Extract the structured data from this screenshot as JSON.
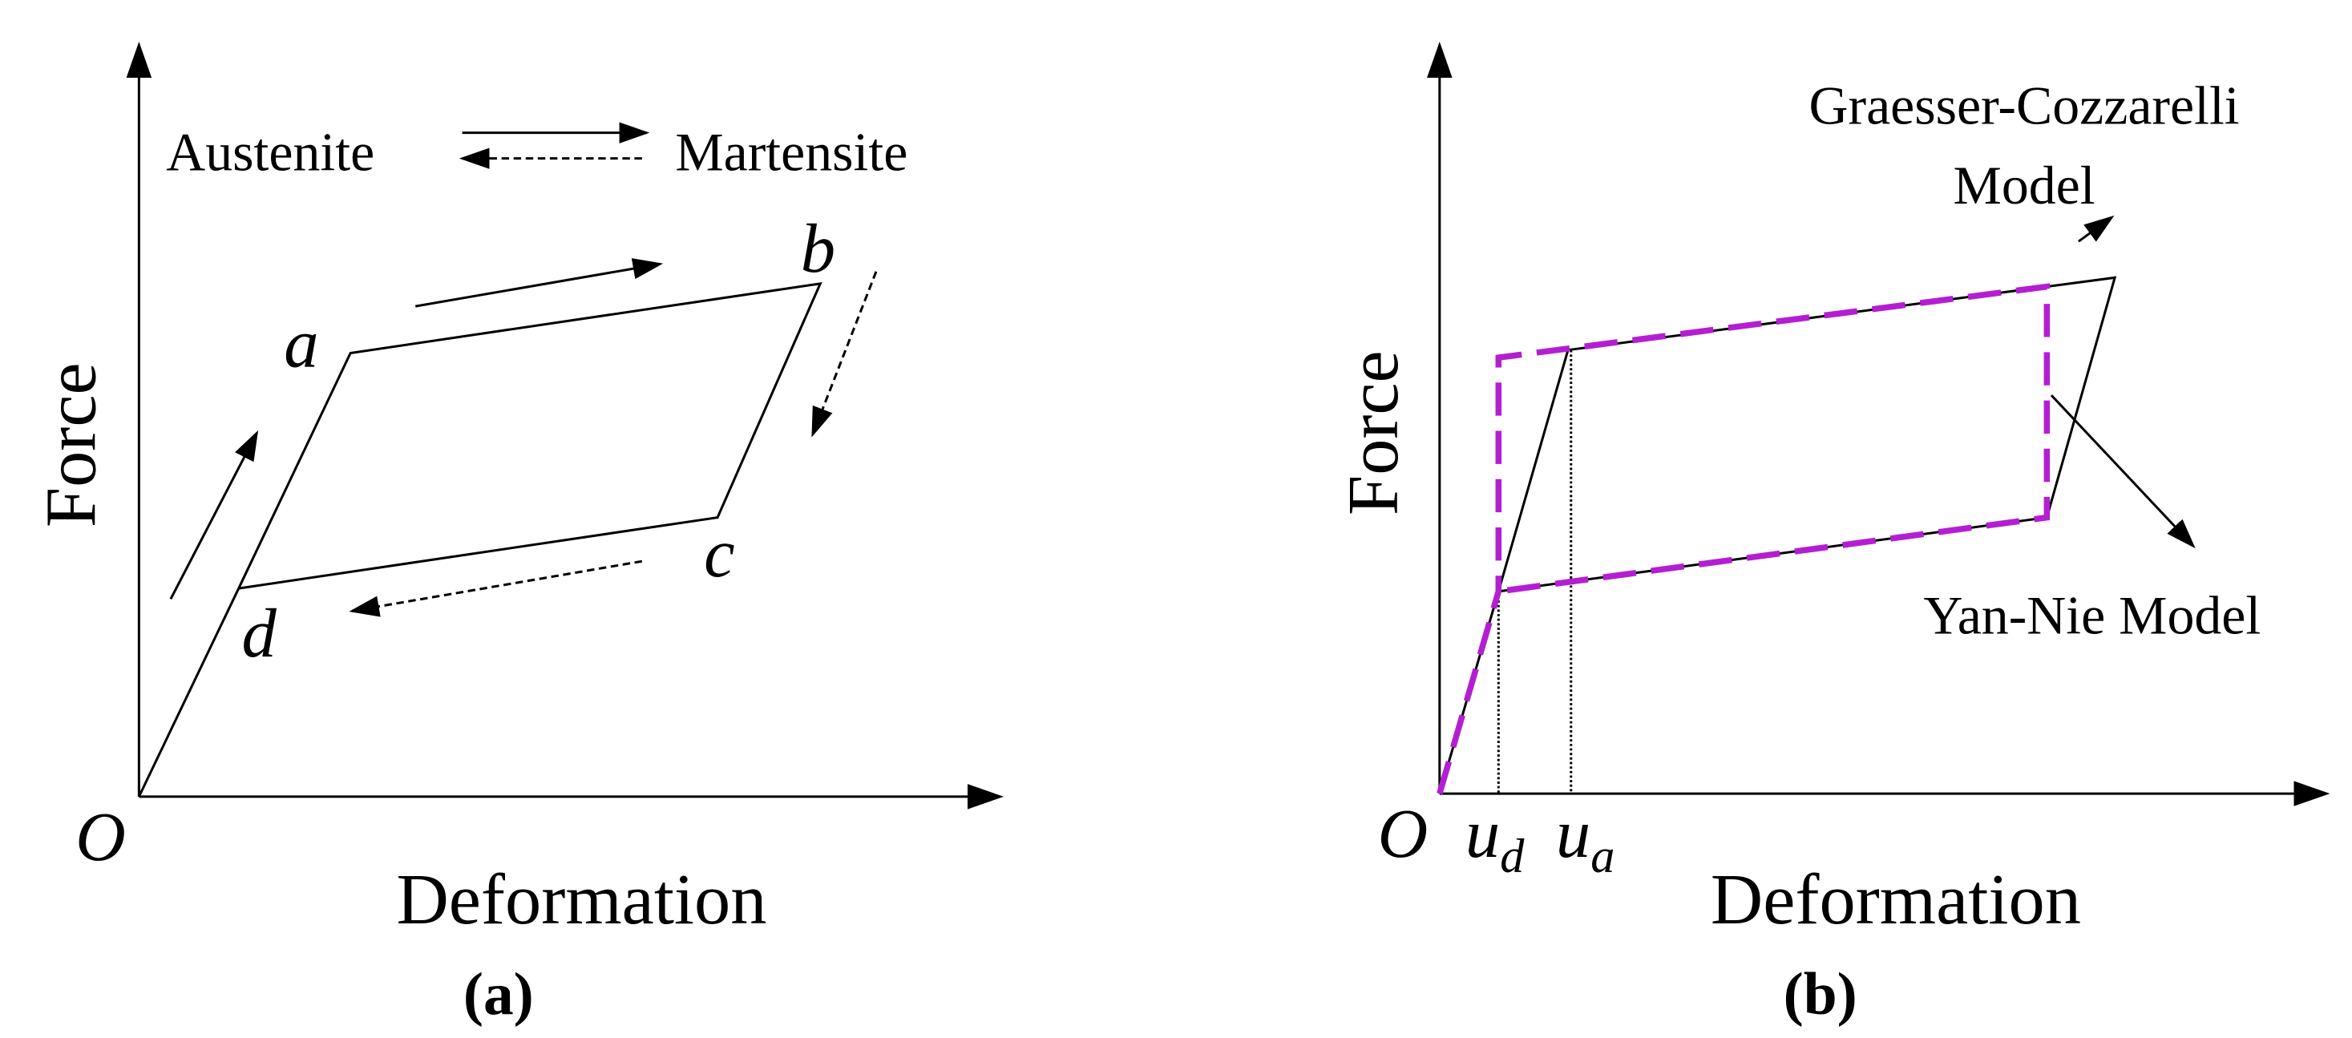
{
  "panel_a": {
    "legend": {
      "forward": "Austenite",
      "backward": "Martensite"
    },
    "points": {
      "a": "a",
      "b": "b",
      "c": "c",
      "d": "d",
      "origin": "O"
    },
    "y_axis_label": "Force",
    "x_axis_label": "Deformation",
    "caption": "(a)"
  },
  "panel_b": {
    "model_labels": {
      "graesser_cozzarelli": [
        "Graesser-Cozzarelli",
        "Model"
      ],
      "yan_nie": "Yan-Nie Model"
    },
    "origin": "O",
    "u_d": {
      "base": "u",
      "sub": "d"
    },
    "u_a": {
      "base": "u",
      "sub": "a"
    },
    "y_axis_label": "Force",
    "x_axis_label": "Deformation",
    "caption": "(b)"
  }
}
